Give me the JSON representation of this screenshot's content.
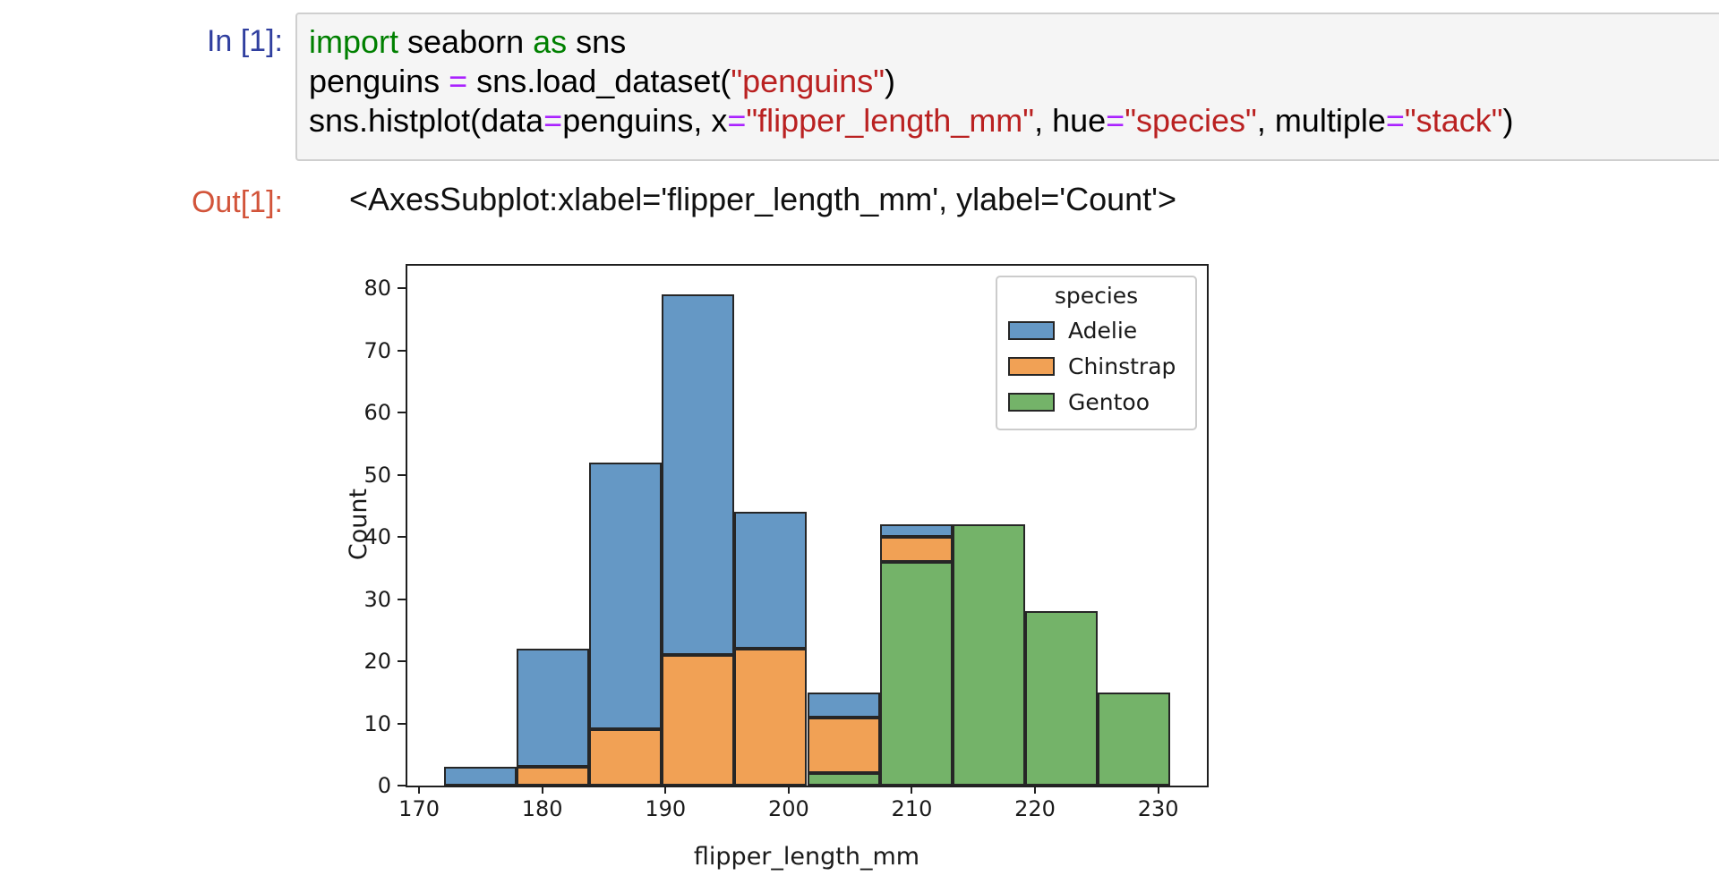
{
  "notebook": {
    "in_prompt": "In [1]:",
    "out_prompt": "Out[1]:",
    "out_text": "<AxesSubplot:xlabel='flipper_length_mm', ylabel='Count'>",
    "token_colors": {
      "kw": "#008000",
      "op": "#aa22ff",
      "str": "#ba2121",
      "plain": "#000000"
    },
    "code_lines": [
      [
        {
          "t": "import",
          "c": "kw"
        },
        {
          "t": " seaborn ",
          "c": "plain"
        },
        {
          "t": "as",
          "c": "kw"
        },
        {
          "t": " sns",
          "c": "plain"
        }
      ],
      [
        {
          "t": "penguins ",
          "c": "plain"
        },
        {
          "t": "=",
          "c": "op"
        },
        {
          "t": " sns.load_dataset(",
          "c": "plain"
        },
        {
          "t": "\"penguins\"",
          "c": "str"
        },
        {
          "t": ")",
          "c": "plain"
        }
      ],
      [
        {
          "t": "sns.histplot(data",
          "c": "plain"
        },
        {
          "t": "=",
          "c": "op"
        },
        {
          "t": "penguins, x",
          "c": "plain"
        },
        {
          "t": "=",
          "c": "op"
        },
        {
          "t": "\"flipper_length_mm\"",
          "c": "str"
        },
        {
          "t": ", hue",
          "c": "plain"
        },
        {
          "t": "=",
          "c": "op"
        },
        {
          "t": "\"species\"",
          "c": "str"
        },
        {
          "t": ", multiple",
          "c": "plain"
        },
        {
          "t": "=",
          "c": "op"
        },
        {
          "t": "\"stack\"",
          "c": "str"
        },
        {
          "t": ")",
          "c": "plain"
        }
      ]
    ]
  },
  "chart_data": {
    "type": "bar",
    "subtype": "stacked-histogram",
    "title": "",
    "xlabel": "flipper_length_mm",
    "ylabel": "Count",
    "xlim": [
      169.05,
      233.95
    ],
    "ylim": [
      0,
      83.6
    ],
    "xticks": [
      170,
      180,
      190,
      200,
      210,
      220,
      230
    ],
    "yticks": [
      0,
      10,
      20,
      30,
      40,
      50,
      60,
      70,
      80
    ],
    "grid": false,
    "edge_color": "#262626",
    "bin_edges": [
      172,
      177.9,
      183.8,
      189.7,
      195.6,
      201.5,
      207.4,
      213.3,
      219.2,
      225.1,
      231
    ],
    "bin_totals": [
      3,
      22,
      52,
      79,
      44,
      15,
      42,
      42,
      28,
      15
    ],
    "stack_order_bottom_to_top": [
      "Gentoo",
      "Chinstrap",
      "Adelie"
    ],
    "series": [
      {
        "name": "Gentoo",
        "color": "#74b369",
        "values": [
          0,
          0,
          0,
          0,
          0,
          2,
          36,
          42,
          28,
          15
        ]
      },
      {
        "name": "Chinstrap",
        "color": "#f1a155",
        "values": [
          0,
          3,
          9,
          21,
          22,
          9,
          4,
          0,
          0,
          0
        ]
      },
      {
        "name": "Adelie",
        "color": "#6598c5",
        "values": [
          3,
          19,
          43,
          58,
          22,
          4,
          2,
          0,
          0,
          0
        ]
      }
    ],
    "legend": {
      "title": "species",
      "position": "upper right",
      "entries": [
        {
          "label": "Adelie",
          "color": "#6598c5"
        },
        {
          "label": "Chinstrap",
          "color": "#f1a155"
        },
        {
          "label": "Gentoo",
          "color": "#74b369"
        }
      ]
    }
  }
}
